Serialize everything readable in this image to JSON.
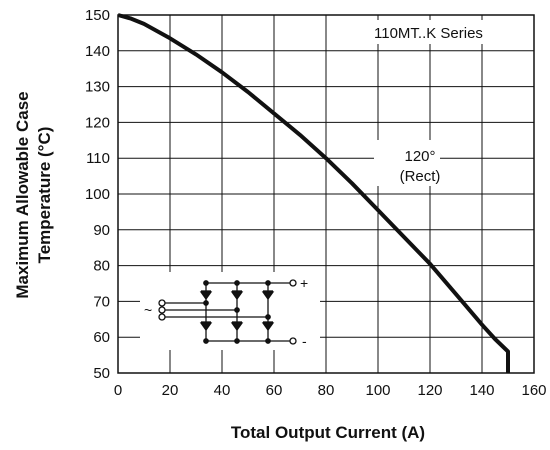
{
  "chart_data": {
    "type": "line",
    "title": "",
    "xlabel": "Total Output Current (A)",
    "ylabel_lines": [
      "Maximum Allowable Case",
      "Temperature (°C)"
    ],
    "xlim": [
      0,
      160
    ],
    "ylim": [
      50,
      150
    ],
    "x_ticks": [
      0,
      20,
      40,
      60,
      80,
      100,
      120,
      140,
      160
    ],
    "y_ticks": [
      50,
      60,
      70,
      80,
      90,
      100,
      110,
      120,
      130,
      140,
      150
    ],
    "grid": true,
    "legend_box": "110MT..K Series",
    "annotation": {
      "line1": "120°",
      "line2": "(Rect)"
    },
    "series": [
      {
        "x": [
          0,
          5,
          10,
          20,
          30,
          40,
          50,
          60,
          70,
          80,
          90,
          100,
          110,
          120,
          130,
          140,
          145,
          150,
          150
        ],
        "y": [
          150,
          149,
          147.5,
          143.5,
          139,
          134,
          128.5,
          122.5,
          116.5,
          110,
          103,
          95.5,
          88,
          80.5,
          72,
          63.5,
          59.5,
          56,
          50
        ]
      }
    ]
  },
  "schematic": {
    "plus_label": "+",
    "minus_label": "-",
    "ac_label": "~"
  },
  "colors": {
    "curve": "#111111",
    "grid": "#111111",
    "text": "#111111"
  }
}
